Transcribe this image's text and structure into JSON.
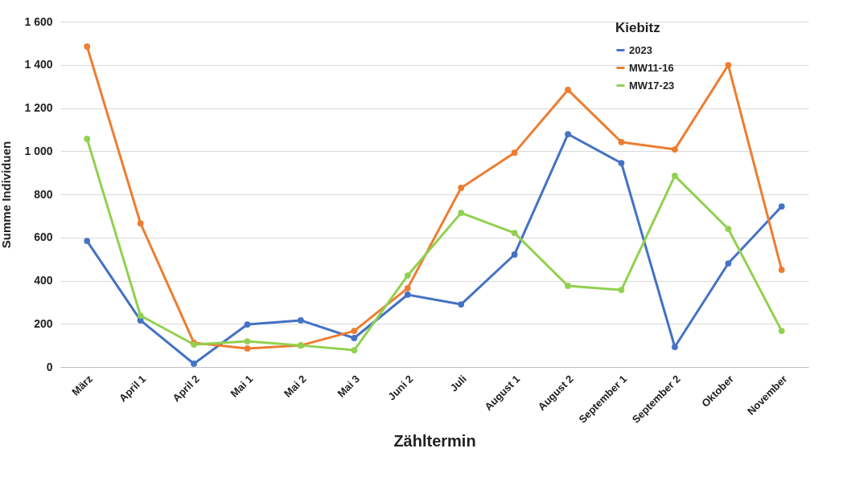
{
  "chart_data": {
    "type": "line",
    "xlabel": "Zähltermin",
    "ylabel": "Summe Individuen",
    "legend_title": "Kiebitz",
    "categories": [
      "März",
      "April 1",
      "April 2",
      "Mai 1",
      "Mai 2",
      "Mai 3",
      "Juni 2",
      "Juli",
      "August 1",
      "August 2",
      "September 1",
      "September 2",
      "Oktober",
      "November"
    ],
    "series": [
      {
        "name": "2023",
        "color": "#4472c4",
        "values": [
          584,
          216,
          15,
          197,
          216,
          134,
          335,
          290,
          521,
          1079,
          945,
          93,
          480,
          744
        ]
      },
      {
        "name": "MW11-16",
        "color": "#ed7d31",
        "values": [
          1485,
          666,
          112,
          86,
          100,
          167,
          365,
          830,
          993,
          1284,
          1042,
          1008,
          1399,
          450
        ]
      },
      {
        "name": "MW17-23",
        "color": "#92d050",
        "values": [
          1057,
          238,
          104,
          119,
          100,
          78,
          424,
          714,
          621,
          376,
          357,
          886,
          640,
          167
        ]
      }
    ],
    "ylim": [
      0,
      1600
    ],
    "yticks": [
      0,
      200,
      400,
      600,
      800,
      {
        "value": 1000,
        "label": "1 000"
      },
      {
        "value": 1200,
        "label": "1 200"
      },
      {
        "value": 1400,
        "label": "1 400"
      },
      {
        "value": 1600,
        "label": "1 600"
      }
    ],
    "grid": "y",
    "legend": "top right",
    "marker": "circle",
    "line_style": "solid"
  }
}
